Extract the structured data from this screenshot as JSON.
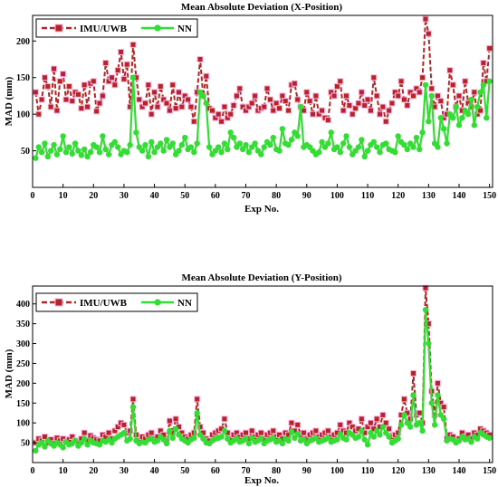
{
  "chart_data": [
    {
      "type": "line",
      "title": "Mean Absolute Deviation (X-Position)",
      "xlabel": "Exp No.",
      "ylabel": "MAD (mm)",
      "xlim": [
        0,
        151
      ],
      "ylim": [
        0,
        235
      ],
      "xticks": [
        "0",
        "10",
        "20",
        "30",
        "40",
        "50",
        "60",
        "70",
        "80",
        "90",
        "100",
        "110",
        "120",
        "130",
        "140",
        "150"
      ],
      "yticks": [
        "50",
        "100",
        "150",
        "200"
      ],
      "legend_position": "top-left",
      "series": [
        {
          "name": "IMU/UWB",
          "color": "#b52525",
          "marker": "square",
          "values": [
            130,
            100,
            120,
            150,
            138,
            110,
            162,
            105,
            145,
            155,
            120,
            138,
            118,
            130,
            127,
            108,
            140,
            110,
            142,
            145,
            104,
            115,
            125,
            170,
            145,
            150,
            140,
            160,
            185,
            148,
            168,
            110,
            195,
            150,
            120,
            110,
            115,
            140,
            100,
            130,
            110,
            138,
            120,
            115,
            105,
            140,
            108,
            130,
            110,
            125,
            120,
            110,
            90,
            130,
            175,
            125,
            152,
            108,
            105,
            95,
            100,
            90,
            110,
            95,
            100,
            112,
            125,
            135,
            110,
            105,
            110,
            115,
            125,
            105,
            108,
            110,
            135,
            120,
            105,
            115,
            108,
            125,
            118,
            105,
            140,
            142,
            120,
            110,
            105,
            130,
            118,
            100,
            125,
            100,
            105,
            95,
            92,
            130,
            125,
            138,
            145,
            105,
            125,
            112,
            100,
            108,
            115,
            130,
            112,
            120,
            105,
            150,
            125,
            100,
            110,
            90,
            105,
            115,
            130,
            125,
            145,
            120,
            112,
            130,
            125,
            135,
            130,
            150,
            230,
            210,
            135,
            110,
            125,
            118,
            95,
            100,
            160,
            140,
            110,
            125,
            105,
            145,
            115,
            110,
            130,
            100,
            105,
            170,
            145,
            190
          ]
        },
        {
          "name": "NN",
          "color": "#33dd33",
          "marker": "circle",
          "values": [
            40,
            55,
            48,
            60,
            42,
            50,
            58,
            45,
            52,
            70,
            48,
            55,
            46,
            60,
            50,
            44,
            52,
            42,
            48,
            58,
            55,
            48,
            70,
            52,
            45,
            58,
            62,
            55,
            45,
            50,
            48,
            58,
            150,
            75,
            55,
            50,
            58,
            42,
            62,
            48,
            55,
            60,
            50,
            65,
            55,
            60,
            45,
            50,
            58,
            68,
            52,
            55,
            48,
            60,
            130,
            125,
            115,
            55,
            45,
            50,
            55,
            48,
            60,
            52,
            75,
            68,
            55,
            60,
            52,
            58,
            48,
            55,
            60,
            50,
            45,
            55,
            62,
            58,
            68,
            52,
            50,
            80,
            60,
            58,
            65,
            75,
            70,
            110,
            55,
            58,
            55,
            50,
            45,
            48,
            62,
            55,
            60,
            75,
            52,
            55,
            48,
            60,
            70,
            55,
            45,
            50,
            55,
            65,
            42,
            50,
            58,
            62,
            55,
            48,
            58,
            60,
            52,
            50,
            48,
            70,
            62,
            58,
            52,
            60,
            55,
            68,
            52,
            75,
            140,
            90,
            125,
            60,
            55,
            95,
            80,
            60,
            100,
            95,
            110,
            85,
            95,
            105,
            100,
            120,
            85,
            110,
            130,
            140,
            95,
            145
          ]
        }
      ]
    },
    {
      "type": "line",
      "title": "Mean Absolute Deviation (Y-Position)",
      "xlabel": "Exp No.",
      "ylabel": "MAD (mm)",
      "xlim": [
        0,
        151
      ],
      "ylim": [
        0,
        445
      ],
      "xticks": [
        "0",
        "10",
        "20",
        "30",
        "40",
        "50",
        "60",
        "70",
        "80",
        "90",
        "100",
        "110",
        "120",
        "130",
        "140",
        "150"
      ],
      "yticks": [
        "50",
        "100",
        "150",
        "200",
        "250",
        "300",
        "350",
        "400"
      ],
      "legend_position": "top-left",
      "series": [
        {
          "name": "IMU/UWB",
          "color": "#b52525",
          "marker": "square",
          "values": [
            50,
            60,
            55,
            65,
            50,
            58,
            48,
            62,
            55,
            60,
            52,
            58,
            65,
            55,
            50,
            60,
            75,
            55,
            68,
            62,
            58,
            55,
            70,
            65,
            75,
            60,
            80,
            90,
            100,
            95,
            75,
            80,
            160,
            70,
            55,
            65,
            60,
            70,
            75,
            60,
            65,
            80,
            70,
            55,
            105,
            75,
            110,
            90,
            75,
            65,
            60,
            70,
            75,
            160,
            90,
            75,
            60,
            55,
            70,
            75,
            80,
            85,
            110,
            75,
            60,
            70,
            75,
            65,
            70,
            75,
            60,
            80,
            65,
            70,
            75,
            60,
            70,
            75,
            80,
            65,
            70,
            60,
            75,
            70,
            100,
            80,
            95,
            70,
            75,
            60,
            70,
            75,
            80,
            65,
            70,
            75,
            80,
            65,
            70,
            75,
            95,
            80,
            75,
            100,
            90,
            80,
            85,
            110,
            75,
            90,
            100,
            85,
            110,
            90,
            120,
            100,
            85,
            65,
            70,
            75,
            120,
            160,
            125,
            110,
            225,
            120,
            125,
            100,
            440,
            350,
            180,
            120,
            200,
            150,
            140,
            60,
            70,
            65,
            55,
            60,
            75,
            65,
            70,
            60,
            75,
            70,
            85,
            80,
            75,
            70
          ]
        },
        {
          "name": "NN",
          "color": "#33dd33",
          "marker": "circle",
          "values": [
            30,
            45,
            50,
            40,
            55,
            48,
            42,
            50,
            45,
            38,
            52,
            45,
            48,
            55,
            42,
            50,
            60,
            45,
            55,
            50,
            48,
            45,
            55,
            52,
            58,
            50,
            60,
            65,
            70,
            75,
            55,
            60,
            140,
            55,
            48,
            52,
            50,
            58,
            60,
            52,
            55,
            65,
            58,
            48,
            80,
            62,
            85,
            70,
            60,
            55,
            50,
            58,
            62,
            125,
            70,
            60,
            50,
            48,
            55,
            60,
            62,
            65,
            80,
            60,
            50,
            55,
            60,
            52,
            55,
            60,
            48,
            62,
            52,
            55,
            60,
            48,
            55,
            58,
            62,
            52,
            55,
            48,
            60,
            55,
            78,
            62,
            72,
            55,
            58,
            48,
            55,
            58,
            62,
            52,
            55,
            58,
            62,
            52,
            55,
            58,
            72,
            62,
            58,
            75,
            70,
            62,
            65,
            80,
            58,
            45,
            75,
            65,
            80,
            70,
            90,
            75,
            65,
            50,
            55,
            60,
            95,
            120,
            100,
            90,
            170,
            95,
            100,
            80,
            385,
            300,
            150,
            95,
            170,
            120,
            110,
            55,
            60,
            58,
            50,
            55,
            65,
            58,
            60,
            52,
            65,
            60,
            75,
            70,
            65,
            62
          ]
        }
      ]
    }
  ]
}
